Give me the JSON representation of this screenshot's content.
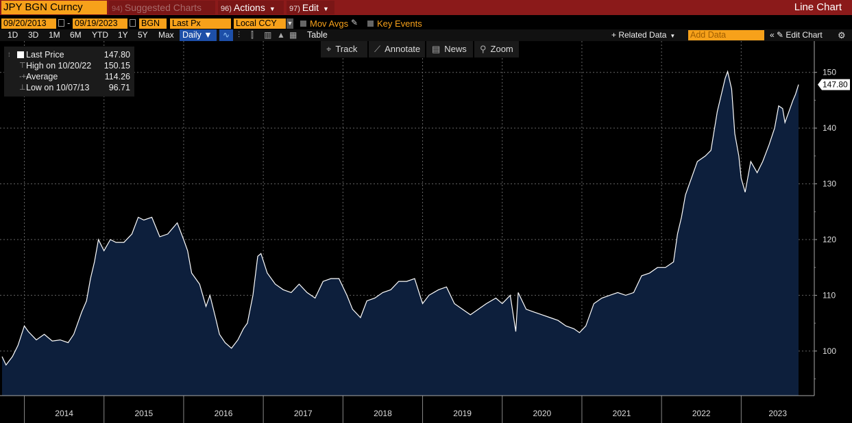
{
  "header": {
    "ticker": "JPY BGN Curncy",
    "menu_suggested_num": "94)",
    "menu_suggested": "Suggested Charts",
    "menu_actions_num": "96)",
    "menu_actions": "Actions",
    "menu_edit_num": "97)",
    "menu_edit": "Edit",
    "chart_type": "Line Chart"
  },
  "controls": {
    "start_date": "09/20/2013",
    "end_date": "09/19/2023",
    "source": "BGN",
    "field": "Last Px",
    "currency": "Local CCY",
    "mov_avgs": "Mov Avgs",
    "key_events": "Key Events",
    "ranges": [
      "1D",
      "3D",
      "1M",
      "6M",
      "YTD",
      "1Y",
      "5Y",
      "Max"
    ],
    "frequency": "Daily",
    "table": "Table",
    "related_data": "Related Data",
    "add_data_placeholder": "Add Data",
    "edit_chart": "Edit Chart"
  },
  "chart_tools": {
    "track": "Track",
    "annotate": "Annotate",
    "news": "News",
    "zoom": "Zoom"
  },
  "legend": {
    "last_price_label": "Last Price",
    "last_price_value": "147.80",
    "high_label": "High on 10/20/22",
    "high_value": "150.15",
    "average_label": "Average",
    "average_value": "114.26",
    "low_label": "Low on 10/07/13",
    "low_value": "96.71"
  },
  "colors": {
    "accent_orange": "#f7a11a",
    "header_red": "#8b1a1a",
    "area_fill": "#0d1f3c",
    "line": "#ffffff",
    "selected_blue": "#1d4fa8"
  },
  "chart_data": {
    "type": "area",
    "x_labels": [
      "2014",
      "2015",
      "2016",
      "2017",
      "2018",
      "2019",
      "2020",
      "2021",
      "2022",
      "2023"
    ],
    "y_ticks": [
      100,
      110,
      120,
      130,
      140,
      150
    ],
    "ylim": [
      92,
      155
    ],
    "last_value_tag": "147.80",
    "grid": true,
    "series": [
      {
        "values": [
          [
            2013.72,
            99
          ],
          [
            2013.77,
            97.5
          ],
          [
            2013.85,
            99
          ],
          [
            2013.92,
            101
          ],
          [
            2014.0,
            104.5
          ],
          [
            2014.05,
            103.5
          ],
          [
            2014.15,
            102
          ],
          [
            2014.25,
            103
          ],
          [
            2014.35,
            101.8
          ],
          [
            2014.45,
            102
          ],
          [
            2014.55,
            101.5
          ],
          [
            2014.62,
            103
          ],
          [
            2014.72,
            107
          ],
          [
            2014.78,
            109
          ],
          [
            2014.83,
            113
          ],
          [
            2014.88,
            116
          ],
          [
            2014.93,
            120
          ],
          [
            2015.0,
            118
          ],
          [
            2015.08,
            120
          ],
          [
            2015.15,
            119.5
          ],
          [
            2015.25,
            119.5
          ],
          [
            2015.35,
            121
          ],
          [
            2015.43,
            124
          ],
          [
            2015.5,
            123.5
          ],
          [
            2015.6,
            124
          ],
          [
            2015.7,
            120.5
          ],
          [
            2015.8,
            121
          ],
          [
            2015.92,
            123
          ],
          [
            2016.0,
            120
          ],
          [
            2016.05,
            118
          ],
          [
            2016.1,
            114
          ],
          [
            2016.2,
            112
          ],
          [
            2016.28,
            108
          ],
          [
            2016.33,
            110
          ],
          [
            2016.4,
            106
          ],
          [
            2016.45,
            103
          ],
          [
            2016.52,
            101.5
          ],
          [
            2016.6,
            100.5
          ],
          [
            2016.68,
            102
          ],
          [
            2016.75,
            104
          ],
          [
            2016.8,
            105
          ],
          [
            2016.87,
            110
          ],
          [
            2016.93,
            117
          ],
          [
            2016.97,
            117.5
          ],
          [
            2017.05,
            114
          ],
          [
            2017.15,
            112
          ],
          [
            2017.25,
            111
          ],
          [
            2017.35,
            110.5
          ],
          [
            2017.45,
            112
          ],
          [
            2017.55,
            110.5
          ],
          [
            2017.65,
            109.5
          ],
          [
            2017.75,
            112.5
          ],
          [
            2017.85,
            113
          ],
          [
            2017.95,
            113
          ],
          [
            2018.05,
            110
          ],
          [
            2018.12,
            107.5
          ],
          [
            2018.22,
            106
          ],
          [
            2018.3,
            109
          ],
          [
            2018.4,
            109.5
          ],
          [
            2018.5,
            110.5
          ],
          [
            2018.6,
            111
          ],
          [
            2018.7,
            112.5
          ],
          [
            2018.8,
            112.5
          ],
          [
            2018.9,
            113
          ],
          [
            2019.0,
            108.5
          ],
          [
            2019.08,
            110
          ],
          [
            2019.2,
            111
          ],
          [
            2019.3,
            111.5
          ],
          [
            2019.4,
            108.5
          ],
          [
            2019.5,
            107.5
          ],
          [
            2019.6,
            106.5
          ],
          [
            2019.7,
            107.5
          ],
          [
            2019.8,
            108.5
          ],
          [
            2019.92,
            109.5
          ],
          [
            2020.0,
            108.5
          ],
          [
            2020.1,
            110
          ],
          [
            2020.17,
            103.5
          ],
          [
            2020.2,
            110.5
          ],
          [
            2020.3,
            107.5
          ],
          [
            2020.4,
            107
          ],
          [
            2020.5,
            106.5
          ],
          [
            2020.6,
            106
          ],
          [
            2020.7,
            105.5
          ],
          [
            2020.8,
            104.5
          ],
          [
            2020.9,
            104
          ],
          [
            2020.97,
            103.3
          ],
          [
            2021.05,
            104.5
          ],
          [
            2021.15,
            108.5
          ],
          [
            2021.25,
            109.5
          ],
          [
            2021.35,
            110
          ],
          [
            2021.45,
            110.5
          ],
          [
            2021.55,
            110
          ],
          [
            2021.65,
            110.5
          ],
          [
            2021.75,
            113.5
          ],
          [
            2021.85,
            114
          ],
          [
            2021.95,
            115
          ],
          [
            2022.05,
            115
          ],
          [
            2022.15,
            116
          ],
          [
            2022.2,
            121
          ],
          [
            2022.25,
            124
          ],
          [
            2022.3,
            128
          ],
          [
            2022.35,
            130
          ],
          [
            2022.45,
            134
          ],
          [
            2022.55,
            135
          ],
          [
            2022.62,
            136
          ],
          [
            2022.7,
            143
          ],
          [
            2022.8,
            149
          ],
          [
            2022.83,
            150.15
          ],
          [
            2022.88,
            147
          ],
          [
            2022.92,
            139
          ],
          [
            2022.97,
            135
          ],
          [
            2023.0,
            131
          ],
          [
            2023.05,
            128.5
          ],
          [
            2023.12,
            134
          ],
          [
            2023.2,
            132
          ],
          [
            2023.27,
            134
          ],
          [
            2023.35,
            137
          ],
          [
            2023.42,
            140
          ],
          [
            2023.47,
            144
          ],
          [
            2023.52,
            143.5
          ],
          [
            2023.55,
            141
          ],
          [
            2023.6,
            143
          ],
          [
            2023.65,
            145
          ],
          [
            2023.68,
            146
          ],
          [
            2023.72,
            147.8
          ]
        ]
      }
    ]
  }
}
